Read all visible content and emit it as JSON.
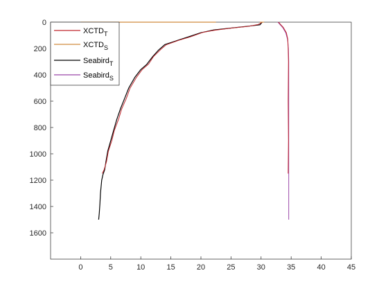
{
  "chart_data": {
    "type": "line",
    "title": "",
    "xlabel": "",
    "ylabel": "",
    "xlim": [
      -5,
      45
    ],
    "ylim": [
      0,
      1800
    ],
    "y_reversed": true,
    "x_ticks": [
      0,
      5,
      10,
      15,
      20,
      25,
      30,
      35,
      40,
      45
    ],
    "y_ticks": [
      0,
      200,
      400,
      600,
      800,
      1000,
      1200,
      1400,
      1600
    ],
    "x_tick_labels": [
      "0",
      "5",
      "10",
      "15",
      "20",
      "25",
      "30",
      "35",
      "40",
      "45"
    ],
    "y_tick_labels": [
      "0",
      "200",
      "400",
      "600",
      "800",
      "1000",
      "1200",
      "1400",
      "1600"
    ],
    "grid": false,
    "legend_position": "top-left",
    "legend": [
      {
        "base": "XCTD",
        "sub": "T",
        "color": "#c0272d"
      },
      {
        "base": "XCTD",
        "sub": "S",
        "color": "#d08a3c"
      },
      {
        "base": "Seabird",
        "sub": "T",
        "color": "#000000"
      },
      {
        "base": "Seabird",
        "sub": "S",
        "color": "#9b45a8"
      }
    ],
    "series": [
      {
        "color": "#000000",
        "width": 1.2,
        "x": [
          30.2,
          29.8,
          28.0,
          25.0,
          22.0,
          20.0,
          18.0,
          16.0,
          14.0,
          13.0,
          12.0,
          11.0,
          10.0,
          9.0,
          8.0,
          7.3,
          6.6,
          6.0,
          5.5,
          5.0,
          4.5,
          4.2,
          4.0,
          3.7,
          3.5,
          3.3,
          3.2,
          3.1,
          3.0
        ],
        "y": [
          0,
          20,
          30,
          45,
          60,
          80,
          110,
          140,
          170,
          210,
          260,
          320,
          360,
          420,
          500,
          580,
          660,
          740,
          820,
          900,
          980,
          1060,
          1120,
          1160,
          1200,
          1300,
          1380,
          1450,
          1500
        ]
      },
      {
        "color": "#c0272d",
        "width": 1.0,
        "x": [
          30.2,
          29.5,
          27.8,
          25.2,
          22.2,
          20.3,
          18.2,
          16.3,
          14.2,
          13.3,
          12.1,
          11.3,
          10.2,
          9.3,
          8.2,
          7.6,
          6.8,
          6.3,
          5.6,
          5.2,
          4.6,
          4.3,
          3.9,
          3.6
        ],
        "y": [
          0,
          18,
          32,
          44,
          62,
          78,
          112,
          138,
          172,
          208,
          262,
          318,
          362,
          418,
          502,
          578,
          662,
          738,
          822,
          898,
          982,
          1060,
          1120,
          1150
        ]
      },
      {
        "color": "#9b45a8",
        "width": 1.0,
        "x": [
          32.8,
          33.1,
          33.6,
          34.1,
          34.4,
          34.55,
          34.6,
          34.6,
          34.6,
          34.6,
          34.6,
          34.6
        ],
        "y": [
          0,
          15,
          40,
          80,
          130,
          200,
          300,
          500,
          800,
          1100,
          1300,
          1500
        ]
      },
      {
        "color": "#c0272d",
        "width": 1.0,
        "x": [
          32.9,
          33.2,
          33.7,
          34.2,
          34.45,
          34.5,
          34.55,
          34.5,
          34.55,
          34.5
        ],
        "y": [
          0,
          15,
          40,
          80,
          130,
          200,
          300,
          600,
          900,
          1150
        ]
      },
      {
        "color": "#d08a3c",
        "width": 1.2,
        "x": [
          0,
          22.5
        ],
        "y": [
          0,
          0
        ]
      },
      {
        "color": "#d08a3c",
        "width": 1.2,
        "x": [
          29.8,
          30.5
        ],
        "y": [
          0,
          0
        ]
      }
    ]
  }
}
